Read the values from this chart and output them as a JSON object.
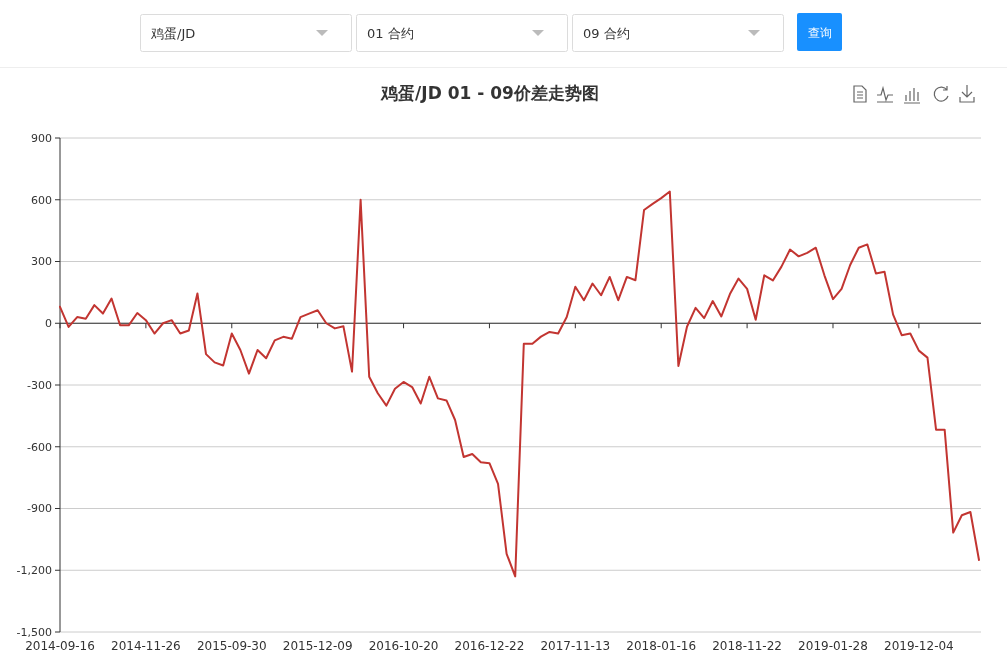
{
  "chart_data": {
    "type": "line",
    "title": "鸡蛋/JD 01 - 09价差走势图",
    "annotations": [
      "鸡蛋/JD",
      "01 合约",
      "09 合约",
      "查询"
    ],
    "categories": [
      "2014-09-16",
      null,
      null,
      null,
      null,
      null,
      null,
      null,
      null,
      null,
      "2014-11-26",
      null,
      null,
      null,
      null,
      null,
      null,
      null,
      null,
      null,
      "2015-09-30",
      null,
      null,
      null,
      null,
      null,
      null,
      null,
      null,
      null,
      "2015-12-09",
      null,
      null,
      null,
      null,
      null,
      null,
      null,
      null,
      null,
      "2016-10-20",
      null,
      null,
      null,
      null,
      null,
      null,
      null,
      null,
      null,
      "2016-12-22",
      null,
      null,
      null,
      null,
      null,
      null,
      null,
      null,
      null,
      "2017-11-13",
      null,
      null,
      null,
      null,
      null,
      null,
      null,
      null,
      null,
      "2018-01-16",
      null,
      null,
      null,
      null,
      null,
      null,
      null,
      null,
      null,
      "2018-11-22",
      null,
      null,
      null,
      null,
      null,
      null,
      null,
      null,
      null,
      "2019-01-28",
      null,
      null,
      null,
      null,
      null,
      null,
      null,
      null,
      null,
      "2019-12-04",
      null,
      null,
      null,
      null,
      null,
      null,
      null
    ],
    "series": [
      {
        "color": "#c23531",
        "values": [
          80,
          -18,
          30,
          22,
          88,
          47,
          120,
          -10,
          -10,
          50,
          15,
          -50,
          0,
          15,
          -50,
          -35,
          145,
          -150,
          -190,
          -205,
          -50,
          -130,
          -245,
          -130,
          -170,
          -83,
          -66,
          -75,
          30,
          47,
          63,
          0,
          -25,
          -15,
          -235,
          600,
          -260,
          -340,
          -400,
          -318,
          -285,
          -310,
          -390,
          -260,
          -365,
          -375,
          -470,
          -650,
          -635,
          -675,
          -680,
          -780,
          -1120,
          -1230,
          -100,
          -100,
          -65,
          -42,
          -50,
          30,
          177,
          112,
          193,
          136,
          225,
          112,
          225,
          209,
          550,
          580,
          608,
          640,
          -208,
          -17,
          75,
          25,
          108,
          33,
          142,
          217,
          167,
          17,
          233,
          208,
          275,
          358,
          325,
          342,
          367,
          233,
          117,
          167,
          283,
          367,
          383,
          242,
          250,
          42,
          -58,
          -50,
          -133,
          -167,
          -517,
          -517,
          -1017,
          -933,
          -917,
          -1150
        ]
      }
    ],
    "ylim": [
      -1500,
      900
    ],
    "yticks": [
      {
        "value": -1500,
        "label": "-1,500"
      },
      {
        "value": -1200,
        "label": "-1,200"
      },
      -900,
      -600,
      -300,
      0,
      300,
      600,
      900
    ],
    "grid": "y",
    "marker": "none",
    "line_style": "solid"
  }
}
